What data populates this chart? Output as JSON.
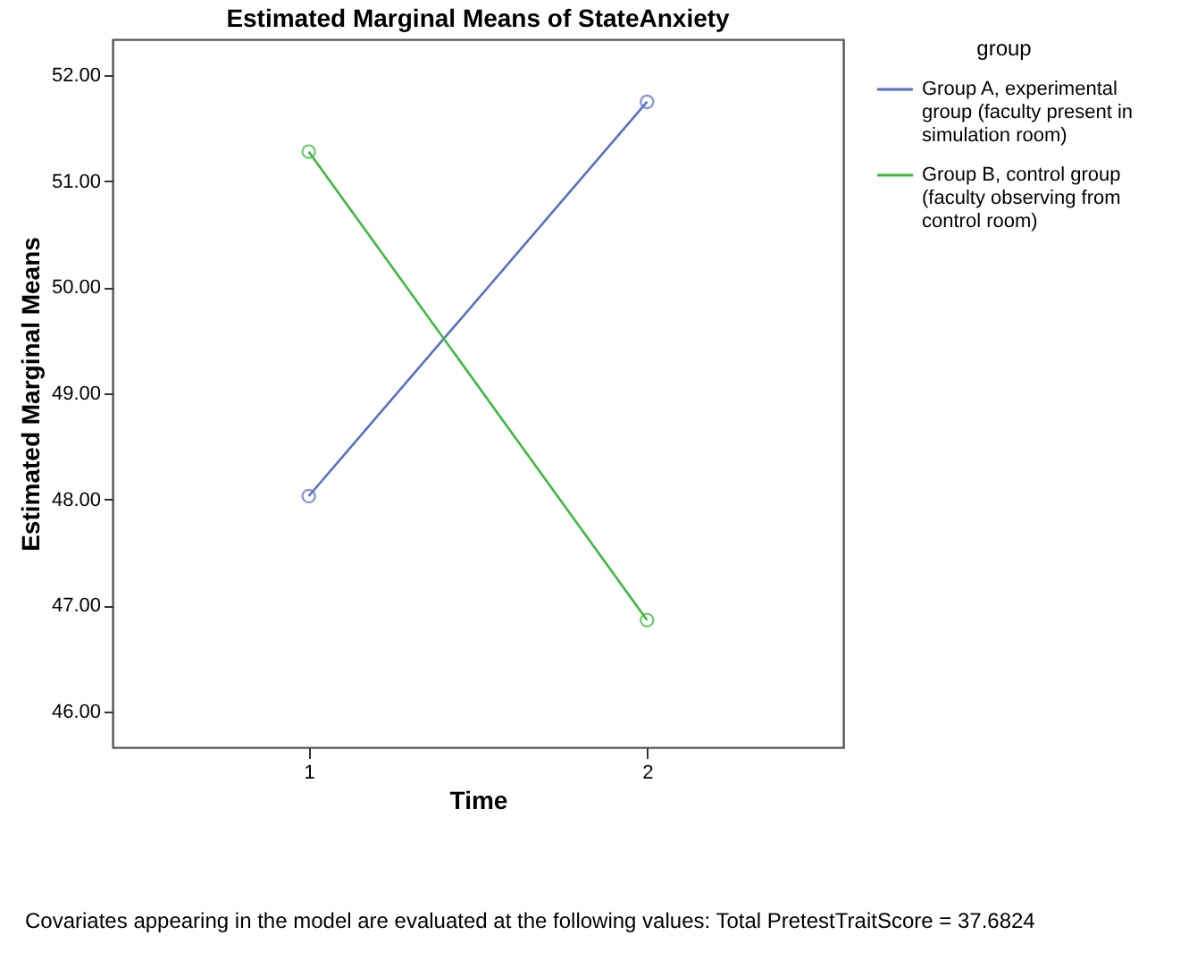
{
  "chart_data": {
    "type": "line",
    "title": "Estimated Marginal Means of StateAnxiety",
    "xlabel": "Time",
    "ylabel": "Estimated Marginal Means",
    "legend_title": "group",
    "categories": [
      "1",
      "2"
    ],
    "series": [
      {
        "name": "Group A, experimental group (faculty present in simulation room)",
        "color": "#5b6fc4",
        "values": [
          48.03,
          51.75
        ]
      },
      {
        "name": "Group B, control group (faculty observing from control room)",
        "color": "#3cb93c",
        "values": [
          51.28,
          46.86
        ]
      }
    ],
    "ylim": [
      45.66,
      52.34
    ],
    "yticks": [
      {
        "value": 46,
        "label": "46.00"
      },
      {
        "value": 47,
        "label": "47.00"
      },
      {
        "value": 48,
        "label": "48.00"
      },
      {
        "value": 49,
        "label": "49.00"
      },
      {
        "value": 50,
        "label": "50.00"
      },
      {
        "value": 51,
        "label": "51.00"
      },
      {
        "value": 52,
        "label": "52.00"
      }
    ],
    "grid": false,
    "legend": "top right",
    "marker": "circle",
    "line_style": "solid",
    "annotations": [
      "Covariates appearing in the model are evaluated at the following values: Total PretestTraitScore = 37.6824"
    ]
  }
}
